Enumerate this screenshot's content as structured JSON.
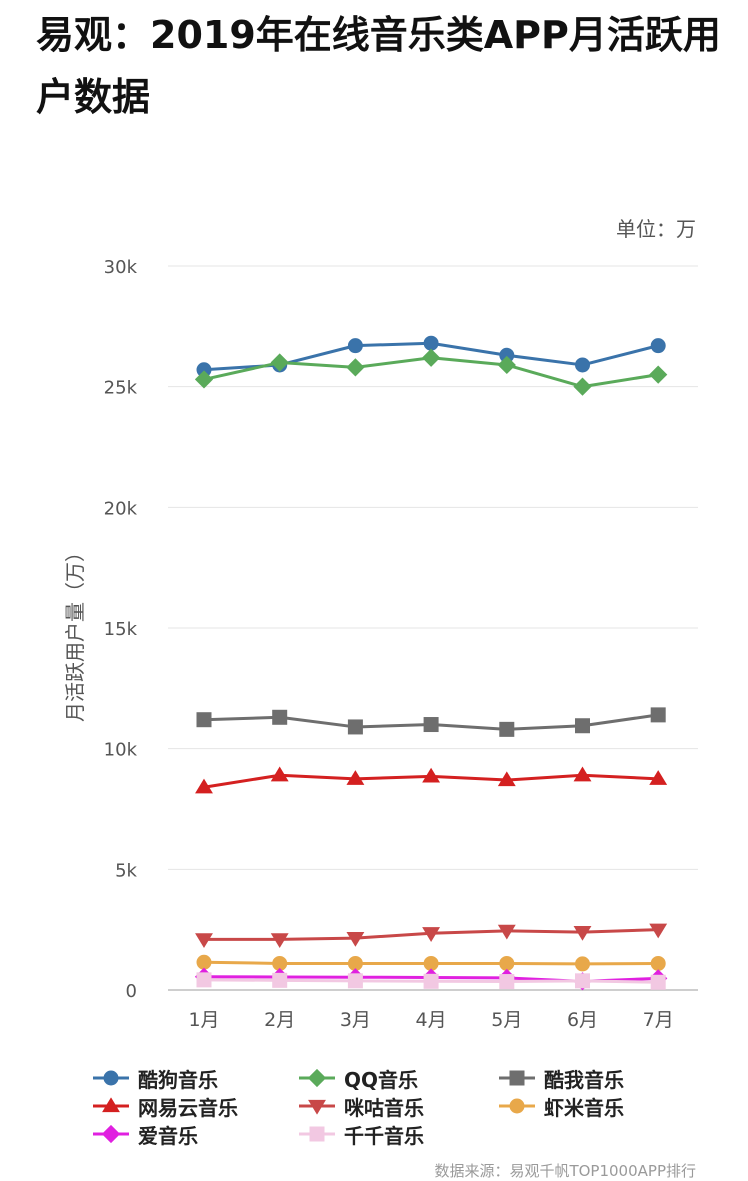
{
  "page": {
    "title": "易观：2019年在线音乐类APP月活跃用户数据",
    "unit_label": "单位：万",
    "source": "数据来源：易观千帆TOP1000APP排行"
  },
  "chart_data": {
    "type": "line",
    "title": "易观：2019年在线音乐类APP月活跃用户数据",
    "xlabel": "",
    "ylabel": "月活跃用户量（万）",
    "ylim": [
      0,
      30000
    ],
    "yticks": [
      0,
      5000,
      10000,
      15000,
      20000,
      25000,
      30000
    ],
    "ytick_labels": [
      "0",
      "5k",
      "10k",
      "15k",
      "20k",
      "25k",
      "30k"
    ],
    "categories": [
      "1月",
      "2月",
      "3月",
      "4月",
      "5月",
      "6月",
      "7月"
    ],
    "grid": "horizontal",
    "legend_position": "bottom",
    "series": [
      {
        "name": "酷狗音乐",
        "color": "#3a73aa",
        "marker": "circle",
        "values": [
          25700,
          25900,
          26700,
          26800,
          26300,
          25900,
          26700
        ]
      },
      {
        "name": "QQ音乐",
        "color": "#5aaa5a",
        "marker": "diamond",
        "values": [
          25300,
          26000,
          25800,
          26200,
          25900,
          25000,
          25500
        ]
      },
      {
        "name": "酷我音乐",
        "color": "#6e6e6e",
        "marker": "square",
        "values": [
          11200,
          11300,
          10900,
          11000,
          10800,
          10950,
          11400
        ]
      },
      {
        "name": "网易云音乐",
        "color": "#d42020",
        "marker": "triangle-up",
        "values": [
          8400,
          8900,
          8750,
          8850,
          8700,
          8900,
          8750
        ]
      },
      {
        "name": "咪咕音乐",
        "color": "#c84848",
        "marker": "triangle-down",
        "values": [
          2100,
          2100,
          2150,
          2350,
          2450,
          2400,
          2500
        ]
      },
      {
        "name": "虾米音乐",
        "color": "#e8a84a",
        "marker": "circle",
        "values": [
          1150,
          1100,
          1100,
          1100,
          1100,
          1080,
          1100
        ]
      },
      {
        "name": "爱音乐",
        "color": "#e020e0",
        "marker": "diamond",
        "values": [
          550,
          540,
          530,
          520,
          500,
          360,
          480
        ]
      },
      {
        "name": "千千音乐",
        "color": "#f2c8e2",
        "marker": "square",
        "values": [
          420,
          400,
          380,
          360,
          350,
          380,
          320
        ]
      }
    ]
  }
}
